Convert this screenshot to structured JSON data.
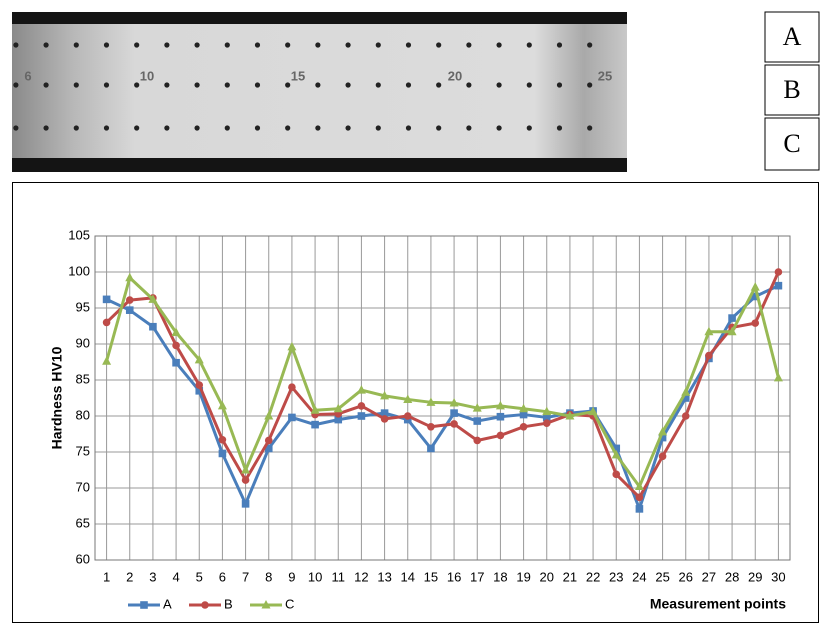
{
  "specimen": {
    "labels": [
      "6",
      "10",
      "15",
      "20",
      "25"
    ],
    "zones": [
      "A",
      "B",
      "C"
    ]
  },
  "chart_data": {
    "type": "line",
    "y_label": "Hardness HV10",
    "x_label": "Measurement points",
    "x": [
      1,
      2,
      3,
      4,
      5,
      6,
      7,
      8,
      9,
      10,
      11,
      12,
      13,
      14,
      15,
      16,
      17,
      18,
      19,
      20,
      21,
      22,
      23,
      24,
      25,
      26,
      27,
      28,
      29,
      30
    ],
    "xlim": [
      0.5,
      30.5
    ],
    "xticks": [
      1,
      2,
      3,
      4,
      5,
      6,
      7,
      8,
      9,
      10,
      11,
      12,
      13,
      14,
      15,
      16,
      17,
      18,
      19,
      20,
      21,
      22,
      23,
      24,
      25,
      26,
      27,
      28,
      29,
      30
    ],
    "ylim": [
      60,
      105
    ],
    "yticks": [
      60,
      65,
      70,
      75,
      80,
      85,
      90,
      95,
      100,
      105
    ],
    "grid": true,
    "legend": "bottom-left",
    "series": [
      {
        "name": "A",
        "color": "#4a7ebb",
        "marker": "square",
        "values": [
          96.2,
          94.7,
          92.4,
          87.4,
          83.5,
          74.8,
          67.8,
          75.5,
          79.8,
          78.8,
          79.5,
          80.0,
          80.4,
          79.5,
          75.5,
          80.4,
          79.3,
          79.9,
          80.2,
          79.8,
          80.4,
          80.7,
          75.5,
          67.1,
          77.0,
          82.5,
          88.0,
          93.6,
          96.6,
          98.1
        ]
      },
      {
        "name": "B",
        "color": "#be4b48",
        "marker": "circle",
        "values": [
          93.0,
          96.1,
          96.4,
          89.8,
          84.3,
          76.7,
          71.1,
          76.6,
          84.0,
          80.2,
          80.3,
          81.4,
          79.6,
          80.0,
          78.5,
          78.9,
          76.6,
          77.3,
          78.5,
          79.0,
          80.2,
          80.0,
          71.9,
          68.7,
          74.4,
          80.0,
          88.4,
          92.3,
          92.9,
          100.0
        ]
      },
      {
        "name": "C",
        "color": "#98b954",
        "marker": "triangle",
        "values": [
          87.6,
          99.2,
          96.2,
          91.6,
          87.8,
          81.4,
          72.5,
          80.0,
          89.6,
          80.8,
          81.0,
          83.6,
          82.8,
          82.3,
          81.9,
          81.8,
          81.1,
          81.4,
          81.0,
          80.6,
          80.0,
          80.6,
          74.6,
          70.2,
          77.8,
          83.3,
          91.7,
          91.7,
          97.9,
          85.3
        ]
      }
    ]
  }
}
